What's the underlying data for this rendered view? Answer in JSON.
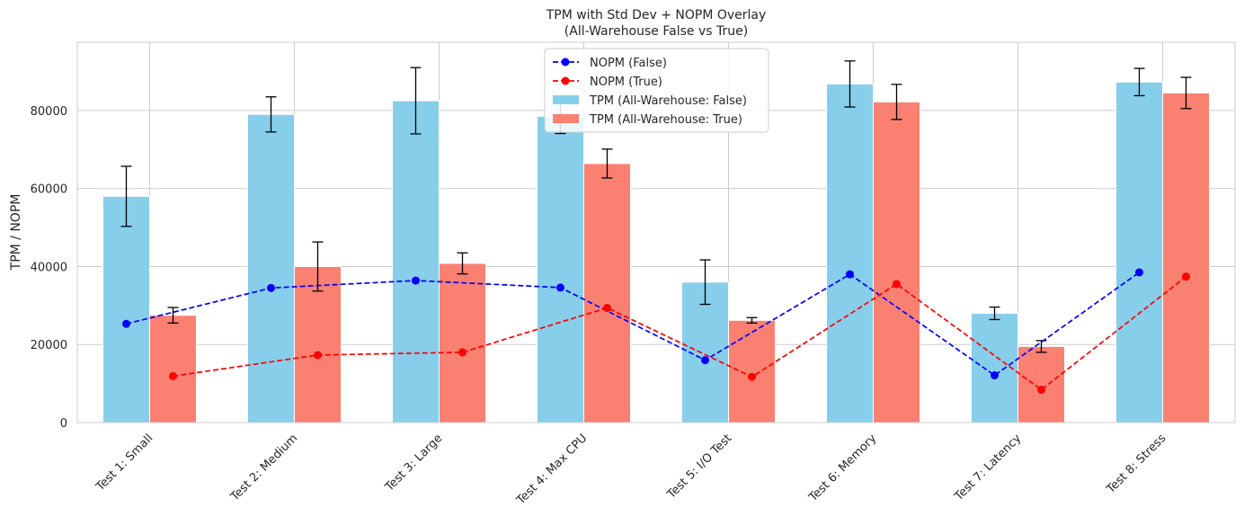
{
  "chart_data": {
    "type": "bar",
    "title": "TPM with Std Dev + NOPM Overlay",
    "subtitle": "(All-Warehouse False vs True)",
    "xlabel": "",
    "ylabel": "TPM / NOPM",
    "ylim": [
      0,
      97500
    ],
    "yticks": [
      0,
      20000,
      40000,
      60000,
      80000
    ],
    "grid": true,
    "legend_position": "top-center",
    "categories": [
      "Test 1: Small",
      "Test 2: Medium",
      "Test 3: Large",
      "Test 4: Max CPU",
      "Test 5: I/O Test",
      "Test 6: Memory",
      "Test 7: Latency",
      "Test 8: Stress"
    ],
    "series": [
      {
        "name": "TPM (All-Warehouse: False)",
        "kind": "bar",
        "color": "#87ceeb",
        "values": [
          58000,
          79000,
          82500,
          78500,
          36000,
          86800,
          28000,
          87300
        ],
        "std": [
          7700,
          4500,
          8500,
          4400,
          5700,
          5900,
          1600,
          3500
        ]
      },
      {
        "name": "TPM (All-Warehouse: True)",
        "kind": "bar",
        "color": "#fa8072",
        "values": [
          27500,
          40000,
          40800,
          66400,
          26200,
          82200,
          19500,
          84500
        ],
        "std": [
          2000,
          6300,
          2700,
          3700,
          700,
          4500,
          1500,
          4000
        ]
      },
      {
        "name": "NOPM (False)",
        "kind": "line",
        "color": "#0000ff",
        "values": [
          25300,
          34500,
          36400,
          34600,
          16000,
          38000,
          12100,
          38500
        ]
      },
      {
        "name": "NOPM (True)",
        "kind": "line",
        "color": "#ff0000",
        "values": [
          11900,
          17300,
          18000,
          29400,
          11700,
          35500,
          8400,
          37400
        ]
      }
    ]
  }
}
